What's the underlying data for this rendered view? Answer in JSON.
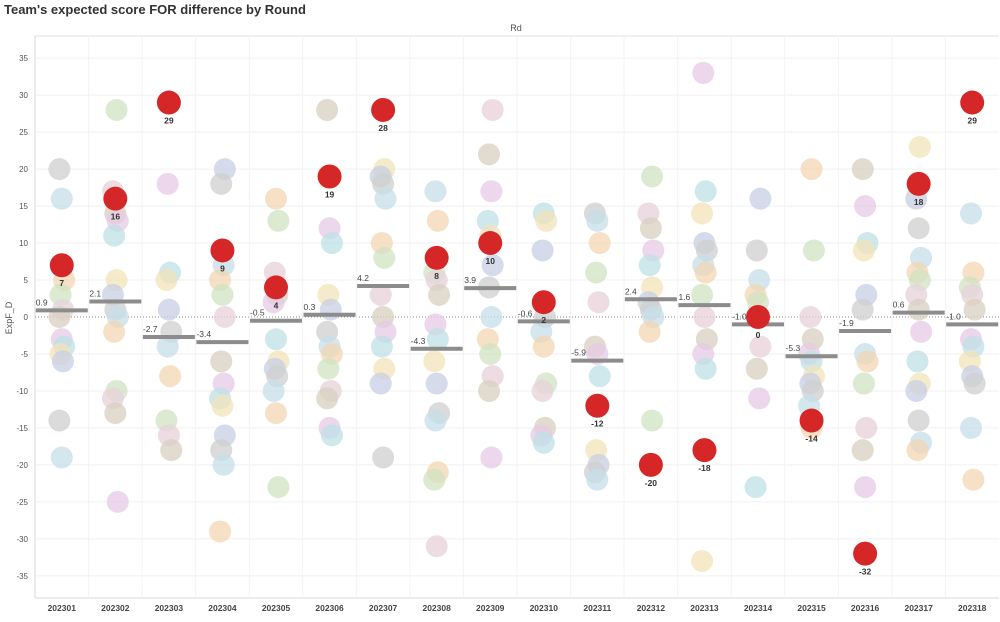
{
  "chart_data": {
    "type": "scatter",
    "title": "Team's expected score FOR difference by Round",
    "column_header": "Rd",
    "ylabel": "ExpF_D",
    "ylim": [
      -38,
      38
    ],
    "yticks": [
      35,
      30,
      25,
      20,
      15,
      10,
      5,
      0,
      -5,
      -10,
      -15,
      -20,
      -25,
      -30,
      -35
    ],
    "grid": "horizontal",
    "categories": [
      "202301",
      "202302",
      "202303",
      "202304",
      "202305",
      "202306",
      "202307",
      "202308",
      "202309",
      "202310",
      "202311",
      "202312",
      "202313",
      "202314",
      "202315",
      "202316",
      "202317",
      "202318"
    ],
    "highlight_color": "#d62728",
    "mean_line_color": "#8c8c8c",
    "highlighted_team": {
      "values": [
        7,
        16,
        29,
        9,
        4,
        19,
        28,
        8,
        10,
        2,
        -12,
        -20,
        -18,
        0,
        -14,
        -32,
        18,
        29
      ],
      "labels": [
        "7",
        "16",
        "29",
        "9",
        "4",
        "19",
        "28",
        "8",
        "10",
        "2",
        "-12",
        "-20",
        "-18",
        "0",
        "-14",
        "-32",
        "18",
        "29"
      ]
    },
    "round_means": {
      "values": [
        0.9,
        2.1,
        -2.7,
        -3.4,
        -0.5,
        0.3,
        4.2,
        -4.3,
        3.9,
        -0.6,
        -5.9,
        2.4,
        1.6,
        -1.0,
        -5.3,
        -1.9,
        0.6,
        -1.0
      ],
      "labels": [
        "0.9",
        "2.1",
        "-2.7",
        "-3.4",
        "-0.5",
        "0.3",
        "4.2",
        "-4.3",
        "3.9",
        "-0.6",
        "-5.9",
        "2.4",
        "1.6",
        "-1.0",
        "-5.3",
        "-1.9",
        "0.6",
        "-1.0"
      ]
    },
    "other_teams": [
      [
        20,
        16,
        5,
        3,
        1,
        0,
        -3,
        -4,
        -5,
        -6,
        -14,
        -19
      ],
      [
        28,
        17,
        14,
        13,
        11,
        5,
        3,
        1,
        0,
        -2,
        -10,
        -11,
        -13,
        -25
      ],
      [
        18,
        6,
        5,
        1,
        -2,
        -4,
        -8,
        -14,
        -16,
        -18
      ],
      [
        20,
        18,
        7,
        5,
        3,
        0,
        -6,
        -9,
        -11,
        -12,
        -16,
        -18,
        -20,
        -29
      ],
      [
        16,
        13,
        6,
        3,
        2,
        -3,
        -6,
        -7,
        -8,
        -10,
        -13,
        -23
      ],
      [
        28,
        12,
        10,
        3,
        1,
        -2,
        -4,
        -5,
        -7,
        -10,
        -11,
        -15,
        -16
      ],
      [
        20,
        19,
        18,
        16,
        10,
        8,
        3,
        0,
        -2,
        -4,
        -7,
        -9,
        -19
      ],
      [
        17,
        13,
        6,
        5,
        3,
        -1,
        -3,
        -6,
        -9,
        -13,
        -14,
        -21,
        -22,
        -31
      ],
      [
        28,
        22,
        17,
        13,
        11,
        7,
        4,
        0,
        -3,
        -5,
        -8,
        -10,
        -19
      ],
      [
        14,
        13,
        9,
        0,
        -2,
        -4,
        -9,
        -10,
        -15,
        -16,
        -17
      ],
      [
        14,
        13,
        10,
        6,
        2,
        -4,
        -5,
        -8,
        -18,
        -20,
        -21,
        -22
      ],
      [
        19,
        14,
        12,
        9,
        7,
        4,
        2,
        1,
        0,
        -2,
        -14
      ],
      [
        33,
        17,
        14,
        10,
        9,
        7,
        6,
        3,
        0,
        -3,
        -5,
        -7,
        -33
      ],
      [
        16,
        9,
        5,
        3,
        2,
        -4,
        -7,
        -11,
        -23
      ],
      [
        20,
        9,
        0,
        -3,
        -5,
        -6,
        -8,
        -9,
        -10,
        -12,
        -15
      ],
      [
        20,
        15,
        10,
        9,
        3,
        1,
        -5,
        -6,
        -9,
        -15,
        -18,
        -23
      ],
      [
        23,
        16,
        12,
        8,
        6,
        5,
        3,
        1,
        -2,
        -6,
        -9,
        -10,
        -14,
        -17,
        -18
      ],
      [
        14,
        6,
        4,
        3,
        1,
        -3,
        -4,
        -6,
        -8,
        -9,
        -15,
        -22
      ]
    ]
  }
}
